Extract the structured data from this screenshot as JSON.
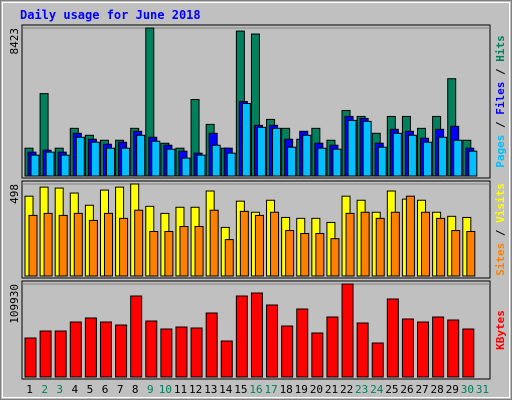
{
  "title": "Daily usage for June 2018",
  "legend_separator": "/",
  "chart_data": [
    {
      "type": "bar",
      "categories": [
        "1",
        "2",
        "3",
        "4",
        "5",
        "6",
        "7",
        "8",
        "9",
        "10",
        "11",
        "12",
        "13",
        "14",
        "15",
        "16",
        "17",
        "18",
        "19",
        "20",
        "21",
        "22",
        "23",
        "24",
        "25",
        "26",
        "27",
        "28",
        "29",
        "30",
        "31"
      ],
      "ylim": [
        0,
        8423
      ],
      "yticks": [
        8423
      ],
      "series": [
        {
          "name": "Hits",
          "color": "#00805c",
          "values": [
            1582,
            4690,
            1582,
            2712,
            2317,
            2034,
            2034,
            2712,
            8423,
            1865,
            1582,
            4351,
            2938,
            1582,
            8249,
            8080,
            3221,
            2712,
            2091,
            2712,
            2034,
            3729,
            3390,
            2430,
            3390,
            3390,
            2712,
            3390,
            5537,
            2034,
            0
          ]
        },
        {
          "name": "Files",
          "color": "#0000ff",
          "values": [
            1356,
            1469,
            1356,
            2430,
            2091,
            1808,
            1921,
            2543,
            2204,
            1752,
            1413,
            1300,
            2430,
            1582,
            4238,
            2882,
            2882,
            2091,
            2543,
            1865,
            1752,
            3390,
            3277,
            1865,
            2656,
            2543,
            2147,
            2656,
            2825,
            1582,
            0
          ]
        },
        {
          "name": "Pages",
          "color": "#00c0ff",
          "values": [
            1187,
            1356,
            1187,
            2204,
            1921,
            1582,
            1582,
            2317,
            1978,
            1526,
            1017,
            1187,
            1752,
            1300,
            4125,
            2769,
            2712,
            1639,
            2317,
            1582,
            1526,
            3164,
            3108,
            1639,
            2430,
            2317,
            1921,
            2204,
            2034,
            1413,
            0
          ]
        }
      ]
    },
    {
      "type": "bar",
      "categories": [
        "1",
        "2",
        "3",
        "4",
        "5",
        "6",
        "7",
        "8",
        "9",
        "10",
        "11",
        "12",
        "13",
        "14",
        "15",
        "16",
        "17",
        "18",
        "19",
        "20",
        "21",
        "22",
        "23",
        "24",
        "25",
        "26",
        "27",
        "28",
        "29",
        "30",
        "31"
      ],
      "ylim": [
        0,
        498
      ],
      "yticks": [
        498
      ],
      "series": [
        {
          "name": "Visits",
          "color": "#ffff00",
          "values": [
            432,
            481,
            476,
            449,
            383,
            465,
            481,
            498,
            377,
            339,
            372,
            372,
            460,
            263,
            405,
            345,
            410,
            317,
            312,
            312,
            290,
            432,
            410,
            345,
            460,
            416,
            410,
            345,
            323,
            317,
            0
          ]
        },
        {
          "name": "Sites",
          "color": "#ff8000",
          "values": [
            328,
            339,
            328,
            339,
            301,
            339,
            312,
            356,
            241,
            241,
            268,
            268,
            356,
            197,
            350,
            328,
            345,
            246,
            230,
            230,
            202,
            339,
            345,
            312,
            345,
            432,
            345,
            312,
            246,
            241,
            0
          ]
        }
      ]
    },
    {
      "type": "bar",
      "categories": [
        "1",
        "2",
        "3",
        "4",
        "5",
        "6",
        "7",
        "8",
        "9",
        "10",
        "11",
        "12",
        "13",
        "14",
        "15",
        "16",
        "17",
        "18",
        "19",
        "20",
        "21",
        "22",
        "23",
        "24",
        "25",
        "26",
        "27",
        "28",
        "29",
        "30",
        "31"
      ],
      "category_colors": [
        "#000000",
        "#00805c",
        "#00805c",
        "#000000",
        "#000000",
        "#000000",
        "#000000",
        "#000000",
        "#00805c",
        "#00805c",
        "#000000",
        "#000000",
        "#000000",
        "#000000",
        "#000000",
        "#00805c",
        "#00805c",
        "#000000",
        "#000000",
        "#000000",
        "#000000",
        "#000000",
        "#00805c",
        "#00805c",
        "#000000",
        "#000000",
        "#000000",
        "#000000",
        "#000000",
        "#00805c",
        "#00805c"
      ],
      "ylim": [
        0,
        109930
      ],
      "yticks": [
        109930
      ],
      "series": [
        {
          "name": "KBytes",
          "color": "#ff0000",
          "values": [
            46100,
            54370,
            54370,
            65010,
            69740,
            65010,
            61460,
            95740,
            66190,
            56740,
            59100,
            57920,
            75650,
            42550,
            95740,
            99290,
            85100,
            60280,
            80380,
            52010,
            70920,
            109930,
            63830,
            40190,
            92200,
            68560,
            65010,
            70920,
            67370,
            56740,
            0
          ]
        }
      ]
    }
  ]
}
